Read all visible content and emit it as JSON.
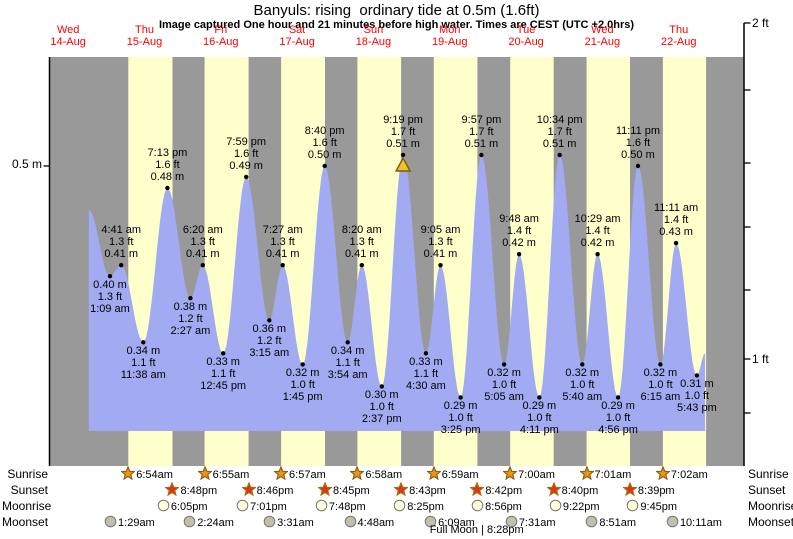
{
  "header": {
    "title": "Banyuls: rising  ordinary tide at 0.5m (1.6ft)",
    "subtitle": "Image captured One hour and 21 minutes before high water. Times are CEST (UTC +2.0hrs)"
  },
  "colors": {
    "night_band": "#999999",
    "daylight_band": "#ffffcc",
    "tide_fill": "#a2abf2",
    "day_label_red": "#ff0000",
    "axis_black": "#000000",
    "sunrise_icon_fill": "#e8941f",
    "sunrise_icon_stroke": "#8a5a00",
    "sunset_icon_fill": "#e03515",
    "sunset_icon_stroke": "#a96a10",
    "moonrise_icon_fill": "#ffffd9",
    "moonset_icon_fill": "#c2bfae",
    "moon_icon_stroke": "#777777",
    "capture_marker_fill": "#f2c12e",
    "capture_marker_stroke": "#7a5c00"
  },
  "chart_data": {
    "type": "area",
    "title": "Banyuls: rising  ordinary tide at 0.5m (1.6ft)",
    "axes": {
      "left_label": "0.5 m",
      "right_top_label": "2 ft",
      "right_bottom_label": "1 ft"
    },
    "days": [
      {
        "weekday": "Wed",
        "date": "14-Aug"
      },
      {
        "weekday": "Thu",
        "date": "15-Aug"
      },
      {
        "weekday": "Fri",
        "date": "16-Aug"
      },
      {
        "weekday": "Sat",
        "date": "17-Aug"
      },
      {
        "weekday": "Sun",
        "date": "18-Aug"
      },
      {
        "weekday": "Mon",
        "date": "19-Aug"
      },
      {
        "weekday": "Tue",
        "date": "20-Aug"
      },
      {
        "weekday": "Wed",
        "date": "21-Aug"
      },
      {
        "weekday": "Thu",
        "date": "22-Aug"
      }
    ],
    "points": [
      {
        "day": 1,
        "time": "1:09 am",
        "height_m": "0.40",
        "height_ft": "1.3",
        "kind": "low"
      },
      {
        "day": 1,
        "time": "4:41 am",
        "height_m": "0.41",
        "height_ft": "1.3",
        "kind": "high"
      },
      {
        "day": 1,
        "time": "11:38 am",
        "height_m": "0.34",
        "height_ft": "1.1",
        "kind": "low"
      },
      {
        "day": 1,
        "time": "7:13 pm",
        "height_m": "0.48",
        "height_ft": "1.6",
        "kind": "high"
      },
      {
        "day": 2,
        "time": "2:27 am",
        "height_m": "0.38",
        "height_ft": "1.2",
        "kind": "low"
      },
      {
        "day": 2,
        "time": "6:20 am",
        "height_m": "0.41",
        "height_ft": "1.3",
        "kind": "high"
      },
      {
        "day": 2,
        "time": "12:45 pm",
        "height_m": "0.33",
        "height_ft": "1.1",
        "kind": "low"
      },
      {
        "day": 2,
        "time": "7:59 pm",
        "height_m": "0.49",
        "height_ft": "1.6",
        "kind": "high"
      },
      {
        "day": 3,
        "time": "3:15 am",
        "height_m": "0.36",
        "height_ft": "1.2",
        "kind": "low"
      },
      {
        "day": 3,
        "time": "7:27 am",
        "height_m": "0.41",
        "height_ft": "1.3",
        "kind": "high"
      },
      {
        "day": 3,
        "time": "1:45 pm",
        "height_m": "0.32",
        "height_ft": "1.0",
        "kind": "low"
      },
      {
        "day": 3,
        "time": "8:40 pm",
        "height_m": "0.50",
        "height_ft": "1.6",
        "kind": "high"
      },
      {
        "day": 4,
        "time": "3:54 am",
        "height_m": "0.34",
        "height_ft": "1.1",
        "kind": "low"
      },
      {
        "day": 4,
        "time": "8:20 am",
        "height_m": "0.41",
        "height_ft": "1.3",
        "kind": "high"
      },
      {
        "day": 4,
        "time": "2:37 pm",
        "height_m": "0.30",
        "height_ft": "1.0",
        "kind": "low"
      },
      {
        "day": 4,
        "time": "9:19 pm",
        "height_m": "0.51",
        "height_ft": "1.7",
        "kind": "high",
        "capture_marker": true
      },
      {
        "day": 5,
        "time": "4:30 am",
        "height_m": "0.33",
        "height_ft": "1.1",
        "kind": "low"
      },
      {
        "day": 5,
        "time": "9:05 am",
        "height_m": "0.41",
        "height_ft": "1.3",
        "kind": "high"
      },
      {
        "day": 5,
        "time": "3:25 pm",
        "height_m": "0.29",
        "height_ft": "1.0",
        "kind": "low"
      },
      {
        "day": 5,
        "time": "9:57 pm",
        "height_m": "0.51",
        "height_ft": "1.7",
        "kind": "high"
      },
      {
        "day": 6,
        "time": "5:05 am",
        "height_m": "0.32",
        "height_ft": "1.0",
        "kind": "low"
      },
      {
        "day": 6,
        "time": "9:48 am",
        "height_m": "0.42",
        "height_ft": "1.4",
        "kind": "high"
      },
      {
        "day": 6,
        "time": "4:11 pm",
        "height_m": "0.29",
        "height_ft": "1.0",
        "kind": "low"
      },
      {
        "day": 6,
        "time": "10:34 pm",
        "height_m": "0.51",
        "height_ft": "1.7",
        "kind": "high"
      },
      {
        "day": 7,
        "time": "5:40 am",
        "height_m": "0.32",
        "height_ft": "1.0",
        "kind": "low"
      },
      {
        "day": 7,
        "time": "10:29 am",
        "height_m": "0.42",
        "height_ft": "1.4",
        "kind": "high"
      },
      {
        "day": 7,
        "time": "4:56 pm",
        "height_m": "0.29",
        "height_ft": "1.0",
        "kind": "low"
      },
      {
        "day": 7,
        "time": "11:11 pm",
        "height_m": "0.50",
        "height_ft": "1.6",
        "kind": "high"
      },
      {
        "day": 8,
        "time": "6:15 am",
        "height_m": "0.32",
        "height_ft": "1.0",
        "kind": "low"
      },
      {
        "day": 8,
        "time": "11:11 am",
        "height_m": "0.43",
        "height_ft": "1.4",
        "kind": "high"
      },
      {
        "day": 8,
        "time": "5:43 pm",
        "height_m": "0.31",
        "height_ft": "1.0",
        "kind": "low"
      }
    ],
    "curve_edges": {
      "start": {
        "hours_after_day0_midnight": 18.5,
        "height_m": 0.46
      },
      "end": {
        "hours_after_day0_midnight": 212.3,
        "height_m": 0.33
      }
    }
  },
  "astro": {
    "rows": [
      {
        "label": "Sunrise",
        "icon": "sunrise-star",
        "entries": [
          {
            "day": 1,
            "time": "6:54am"
          },
          {
            "day": 2,
            "time": "6:55am"
          },
          {
            "day": 3,
            "time": "6:57am"
          },
          {
            "day": 4,
            "time": "6:58am"
          },
          {
            "day": 5,
            "time": "6:59am"
          },
          {
            "day": 6,
            "time": "7:00am"
          },
          {
            "day": 7,
            "time": "7:01am"
          },
          {
            "day": 8,
            "time": "7:02am"
          }
        ]
      },
      {
        "label": "Sunset",
        "icon": "sunset-star",
        "entries": [
          {
            "day": 1,
            "time": "8:48pm"
          },
          {
            "day": 2,
            "time": "8:46pm"
          },
          {
            "day": 3,
            "time": "8:45pm"
          },
          {
            "day": 4,
            "time": "8:43pm"
          },
          {
            "day": 5,
            "time": "8:42pm"
          },
          {
            "day": 6,
            "time": "8:40pm"
          },
          {
            "day": 7,
            "time": "8:39pm"
          }
        ]
      },
      {
        "label": "Moonrise",
        "icon": "moonrise-circle",
        "entries": [
          {
            "day": 1,
            "time": "6:05pm"
          },
          {
            "day": 2,
            "time": "7:01pm"
          },
          {
            "day": 3,
            "time": "7:48pm"
          },
          {
            "day": 4,
            "time": "8:25pm"
          },
          {
            "day": 5,
            "time": "8:56pm"
          },
          {
            "day": 6,
            "time": "9:22pm"
          },
          {
            "day": 7,
            "time": "9:45pm"
          }
        ]
      },
      {
        "label": "Moonset",
        "icon": "moonset-circle",
        "entries": [
          {
            "day": 1,
            "time": "1:29am"
          },
          {
            "day": 2,
            "time": "2:24am"
          },
          {
            "day": 3,
            "time": "3:31am"
          },
          {
            "day": 4,
            "time": "4:48am"
          },
          {
            "day": 5,
            "time": "6:09am"
          },
          {
            "day": 6,
            "time": "7:31am"
          },
          {
            "day": 7,
            "time": "8:51am"
          },
          {
            "day": 8,
            "time": "10:11am"
          }
        ]
      }
    ],
    "footnote": {
      "text": "Full Moon | 8:28pm",
      "day": 5,
      "time": "8:28pm"
    }
  }
}
